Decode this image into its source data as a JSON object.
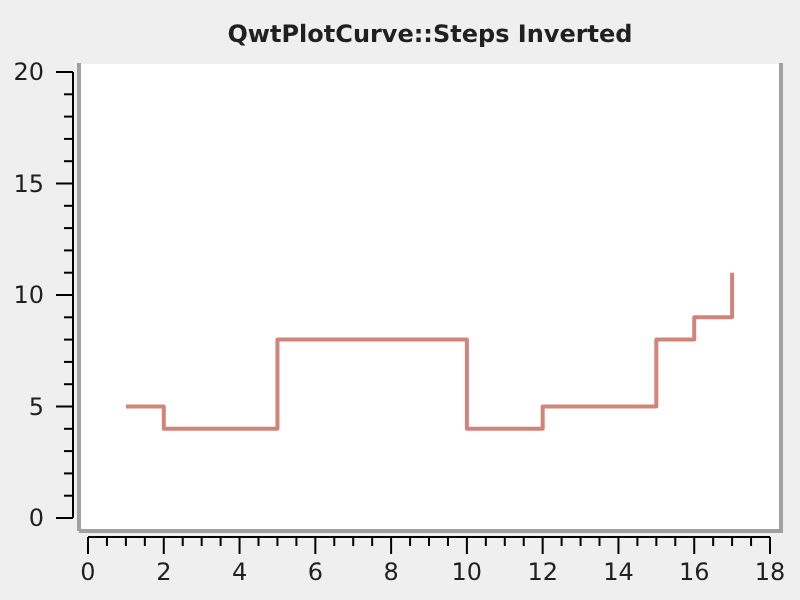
{
  "chart_data": {
    "type": "step",
    "title": "QwtPlotCurve::Steps Inverted",
    "x": [
      1,
      2,
      5,
      6,
      10,
      12,
      15,
      16,
      17
    ],
    "series": [
      {
        "color": "#d0857a",
        "values": [
          5,
          4,
          8,
          8,
          4,
          5,
          8,
          9,
          11
        ]
      }
    ],
    "xlim": [
      0,
      18
    ],
    "xticks": [
      0,
      2,
      4,
      6,
      8,
      10,
      12,
      14,
      16,
      18
    ],
    "ylim": [
      0,
      20
    ],
    "yticks": [
      0,
      5,
      10,
      15,
      20
    ],
    "line_style": "solid"
  }
}
